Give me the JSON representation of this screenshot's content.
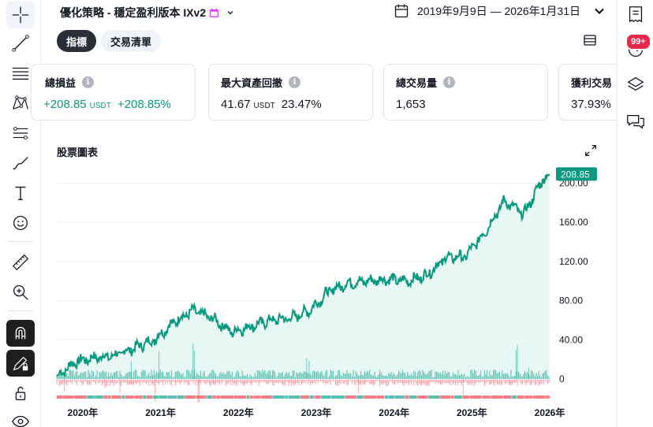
{
  "header": {
    "strategy_title": "優化策略 - 穩定盈利版本 IXv2",
    "date_range": "2019年9月9日 — 2026年1月31日"
  },
  "tabs": [
    {
      "label": "指標",
      "active": true
    },
    {
      "label": "交易清單",
      "active": false
    }
  ],
  "stats": [
    {
      "title": "總損益",
      "value": "+208.85",
      "unit": "USDT",
      "extra": "+208.85%",
      "positive": true
    },
    {
      "title": "最大資產回撤",
      "value": "41.67",
      "unit": "USDT",
      "extra": "23.47%",
      "positive": false
    },
    {
      "title": "總交易量",
      "value": "1,653",
      "unit": "",
      "extra": "",
      "positive": false
    },
    {
      "title": "獲利交易",
      "value": "37.93%",
      "unit": "",
      "extra": "",
      "positive": false
    }
  ],
  "notifications": {
    "badge": "99+"
  },
  "chart": {
    "title": "股票圖表",
    "last_value_label": "208.85"
  },
  "colors": {
    "equity_line": "#089981",
    "area_fill": "#e6f7f4",
    "buy_hold_up": "#22ab94",
    "buy_hold_down": "#f7525f",
    "badge": "#e5294a"
  },
  "chart_data": {
    "type": "area",
    "series": [
      {
        "x": [
          "2019-09",
          "2019-12",
          "2020-03",
          "2020-06",
          "2020-09",
          "2020-12",
          "2021-03",
          "2021-06",
          "2021-09",
          "2021-12",
          "2022-03",
          "2022-06",
          "2022-09",
          "2022-12",
          "2023-03",
          "2023-06",
          "2023-09",
          "2023-12",
          "2024-03",
          "2024-06",
          "2024-09",
          "2024-12",
          "2025-03",
          "2025-06",
          "2025-09",
          "2025-12",
          "2026-01"
        ],
        "values": [
          3,
          18,
          22,
          24,
          32,
          40,
          58,
          70,
          62,
          48,
          54,
          60,
          62,
          70,
          90,
          98,
          100,
          102,
          100,
          106,
          124,
          125,
          150,
          182,
          168,
          205,
          208.85
        ]
      }
    ],
    "y_ticks": [
      "200.00",
      "160.00",
      "120.00",
      "80.00",
      "40.00",
      "0"
    ],
    "y_tick_values": [
      200,
      160,
      120,
      80,
      40,
      0
    ],
    "x_ticks": [
      "2020年",
      "2021年",
      "2022年",
      "2023年",
      "2024年",
      "2025年",
      "2026年"
    ],
    "x_tick_dates": [
      "2020-01",
      "2021-01",
      "2022-01",
      "2023-01",
      "2024-01",
      "2025-01",
      "2026-01"
    ],
    "ylim": [
      -12,
      210
    ],
    "xlim": [
      "2019-09",
      "2026-01"
    ],
    "grid": true,
    "legend": false
  }
}
